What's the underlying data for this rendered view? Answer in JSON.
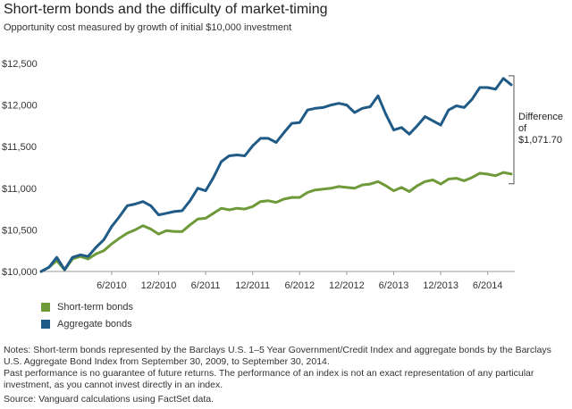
{
  "title": "Short-term bonds and the difficulty of market-timing",
  "subtitle": "Opportunity cost measured by growth of initial $10,000 investment",
  "legend": {
    "short": "Short-term bonds",
    "aggregate": "Aggregate bonds"
  },
  "annotation": {
    "line1": "Difference",
    "line2": "of $1,071.70"
  },
  "notes": {
    "note1": "Notes: Short-term bonds represented by the Barclays U.S. 1–5 Year Government/Credit Index and aggregate bonds by the Barclays U.S. Aggregate Bond Index from September 30, 2009, to September 30, 2014.",
    "note2": "Past performance is no guarantee of future returns. The performance of an index is not an exact representation of any particular investment, as you cannot invest directly in an index.",
    "source": "Source: Vanguard calculations using FactSet data."
  },
  "colors": {
    "short": "#6e9a3a",
    "aggregate": "#1f5b86",
    "axis": "#999999",
    "grid": "#e6e6e6"
  },
  "chart_data": {
    "type": "line",
    "x_start": "2009-09",
    "x_end": "2014-09",
    "x_tick_labels": [
      "6/2010",
      "12/2010",
      "6/2011",
      "12/2011",
      "6/2012",
      "12/2012",
      "6/2013",
      "12/2013",
      "6/2014"
    ],
    "y_tick_labels": [
      "$10,000",
      "$10,500",
      "$11,000",
      "$11,500",
      "$12,000",
      "$12,500"
    ],
    "ylim": [
      10000,
      12500
    ],
    "grid": false,
    "legend_position": "bottom-left",
    "series": [
      {
        "name": "Short-term bonds",
        "values": [
          10000,
          10050,
          10130,
          10020,
          10150,
          10180,
          10150,
          10210,
          10250,
          10330,
          10400,
          10460,
          10500,
          10550,
          10510,
          10450,
          10490,
          10480,
          10480,
          10560,
          10630,
          10640,
          10700,
          10760,
          10740,
          10760,
          10750,
          10780,
          10840,
          10850,
          10830,
          10870,
          10890,
          10890,
          10950,
          10980,
          10990,
          11000,
          11020,
          11010,
          11000,
          11040,
          11050,
          11080,
          11030,
          10970,
          11010,
          10960,
          11030,
          11080,
          11100,
          11050,
          11110,
          11120,
          11090,
          11130,
          11180,
          11170,
          11150,
          11190,
          11171.7
        ]
      },
      {
        "name": "Aggregate bonds",
        "values": [
          10000,
          10050,
          10170,
          10020,
          10170,
          10200,
          10180,
          10290,
          10380,
          10540,
          10660,
          10790,
          10810,
          10840,
          10790,
          10680,
          10700,
          10720,
          10730,
          10850,
          11000,
          10970,
          11130,
          11320,
          11390,
          11400,
          11390,
          11510,
          11600,
          11600,
          11550,
          11670,
          11780,
          11790,
          11940,
          11960,
          11970,
          12000,
          12020,
          12000,
          11910,
          11960,
          11980,
          12110,
          11890,
          11700,
          11730,
          11650,
          11750,
          11860,
          11810,
          11760,
          11940,
          11990,
          11970,
          12070,
          12210,
          12210,
          12190,
          12320,
          12243.4
        ]
      }
    ]
  }
}
